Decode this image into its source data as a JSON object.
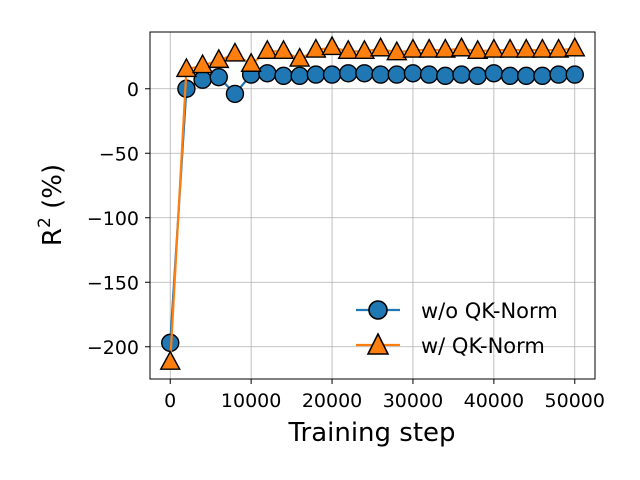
{
  "chart_data": {
    "type": "line",
    "xlabel": "Training step",
    "ylabel_base": "R",
    "ylabel_sup": "2",
    "ylabel_rest": " (%)",
    "xlim": [
      -2500,
      52500
    ],
    "ylim": [
      -225,
      44
    ],
    "xticks": [
      {
        "value": 0,
        "label": "0"
      },
      {
        "value": 10000,
        "label": "10000"
      },
      {
        "value": 20000,
        "label": "20000"
      },
      {
        "value": 30000,
        "label": "30000"
      },
      {
        "value": 40000,
        "label": "40000"
      },
      {
        "value": 50000,
        "label": "50000"
      }
    ],
    "yticks": [
      {
        "value": 0,
        "label": "0"
      },
      {
        "value": -50,
        "label": "−50"
      },
      {
        "value": -100,
        "label": "−100"
      },
      {
        "value": -150,
        "label": "−150"
      },
      {
        "value": -200,
        "label": "−200"
      }
    ],
    "grid": true,
    "legend_position": "lower-right",
    "x": [
      0,
      2000,
      4000,
      6000,
      8000,
      10000,
      12000,
      14000,
      16000,
      18000,
      20000,
      22000,
      24000,
      26000,
      28000,
      30000,
      32000,
      34000,
      36000,
      38000,
      40000,
      42000,
      44000,
      46000,
      48000,
      50000
    ],
    "series": [
      {
        "name": "w/o QK-Norm",
        "marker": "circle",
        "color": "#1f77b4",
        "values": [
          -197,
          0,
          7,
          9,
          -4,
          11,
          12,
          10,
          10,
          11,
          11,
          12,
          12,
          11,
          11,
          12,
          11,
          10,
          11,
          10,
          12,
          10,
          10,
          10,
          11,
          11
        ]
      },
      {
        "name": "w/ QK-Norm",
        "marker": "triangle",
        "color": "#ff7f0e",
        "values": [
          -212,
          15,
          18,
          22,
          27,
          19,
          29,
          29,
          23,
          30,
          32,
          29,
          29,
          31,
          28,
          30,
          30,
          30,
          31,
          29,
          30,
          30,
          30,
          30,
          30,
          31
        ]
      }
    ]
  }
}
